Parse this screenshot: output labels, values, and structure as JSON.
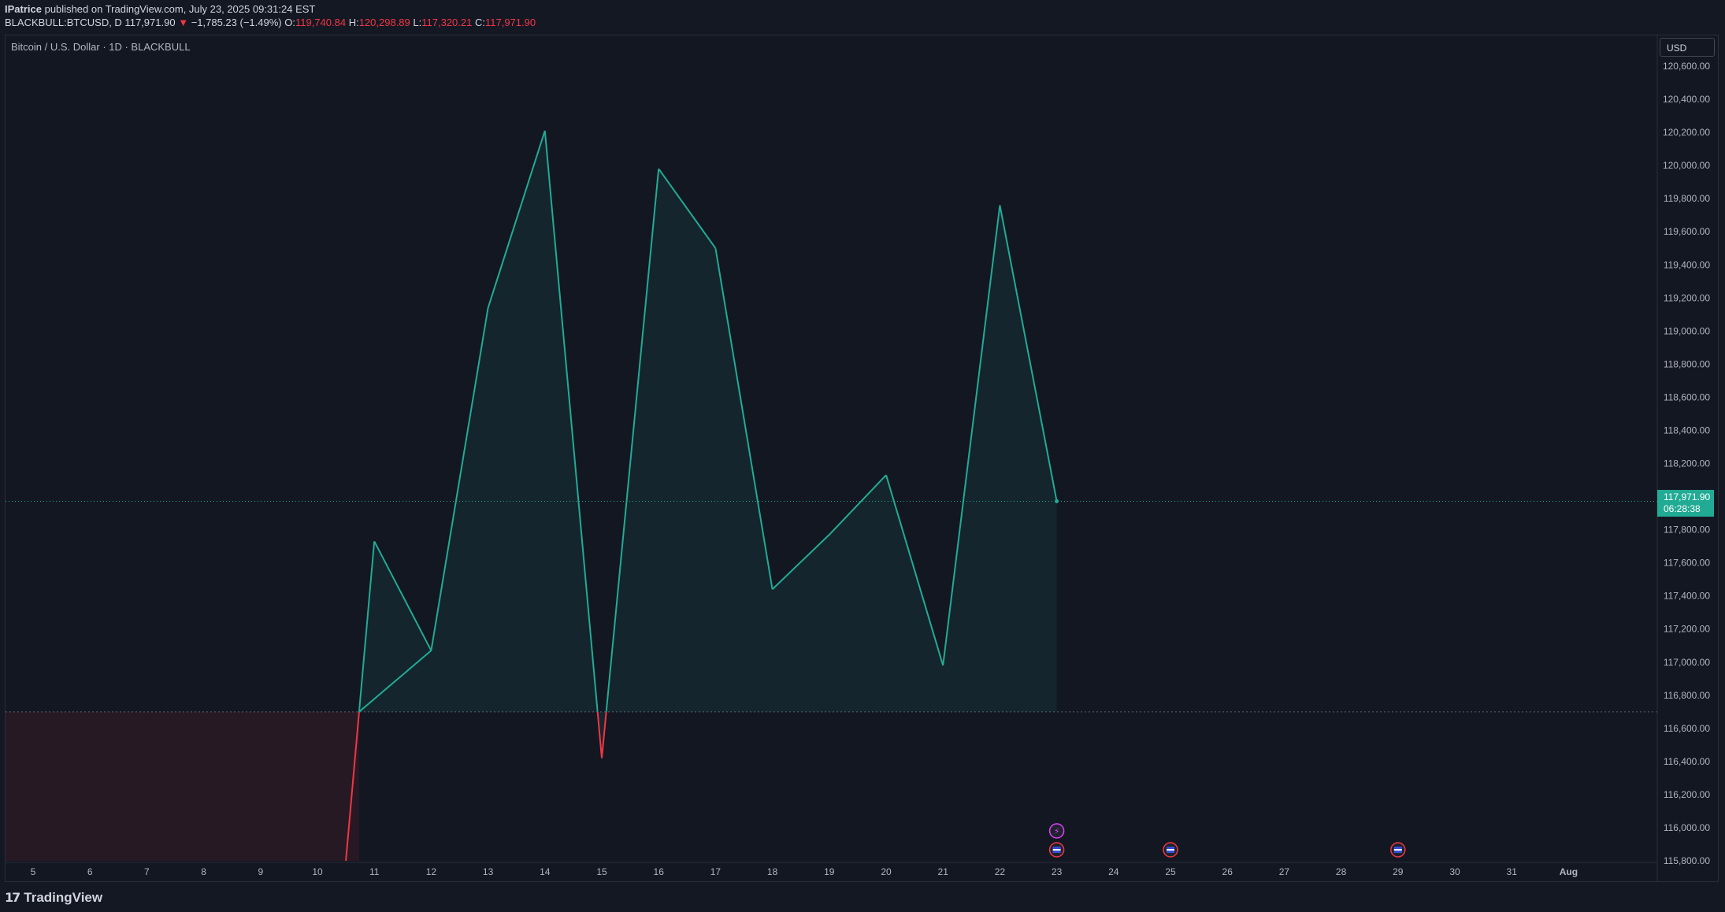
{
  "header": {
    "author": "IPatrice",
    "published_text": " published on TradingView.com, July 23, 2025 09:31:24 EST",
    "symbol": "BLACKBULL:BTCUSD, D",
    "last": "117,971.90",
    "change": "−1,785.23 (−1.49%)",
    "o_label": "O:",
    "o_value": "119,740.84",
    "h_label": "H:",
    "h_value": "120,298.89",
    "l_label": "L:",
    "l_value": "117,320.21",
    "c_label": "C:",
    "c_value": "117,971.90"
  },
  "chart_title": "Bitcoin / U.S. Dollar · 1D · BLACKBULL",
  "currency": "USD",
  "price_tag": {
    "price": "117,971.90",
    "countdown": "06:28:38"
  },
  "brand": "TradingView",
  "colors": {
    "up": "#22ab94",
    "down": "#f23645",
    "bg": "#131722",
    "grid_text": "#b2b5be"
  },
  "chart_data": {
    "type": "area",
    "x": [
      "10.5",
      "11",
      "12",
      "13",
      "14",
      "15",
      "16",
      "17",
      "18",
      "19",
      "20",
      "21",
      "22",
      "23"
    ],
    "values": [
      115800,
      117730,
      117070,
      119140,
      120210,
      116420,
      119980,
      119500,
      117440,
      117770,
      118130,
      116980,
      119760,
      117971.9
    ],
    "baseline": 116700,
    "ylim": [
      115800,
      120650
    ],
    "x_ticks": [
      "5",
      "6",
      "7",
      "8",
      "9",
      "10",
      "11",
      "12",
      "13",
      "14",
      "15",
      "16",
      "17",
      "18",
      "19",
      "20",
      "21",
      "22",
      "23",
      "24",
      "25",
      "26",
      "27",
      "28",
      "29",
      "30",
      "31",
      "Aug"
    ],
    "y_ticks": [
      "120,600.00",
      "120,400.00",
      "120,200.00",
      "120,000.00",
      "119,800.00",
      "119,600.00",
      "119,400.00",
      "119,200.00",
      "119,000.00",
      "118,800.00",
      "118,600.00",
      "118,400.00",
      "118,200.00",
      "118,000.00",
      "117,800.00",
      "117,600.00",
      "117,400.00",
      "117,200.00",
      "117,000.00",
      "116,800.00",
      "116,600.00",
      "116,400.00",
      "116,200.00",
      "116,000.00",
      "115,800.00"
    ],
    "event_days": [
      "23",
      "25",
      "29"
    ]
  }
}
